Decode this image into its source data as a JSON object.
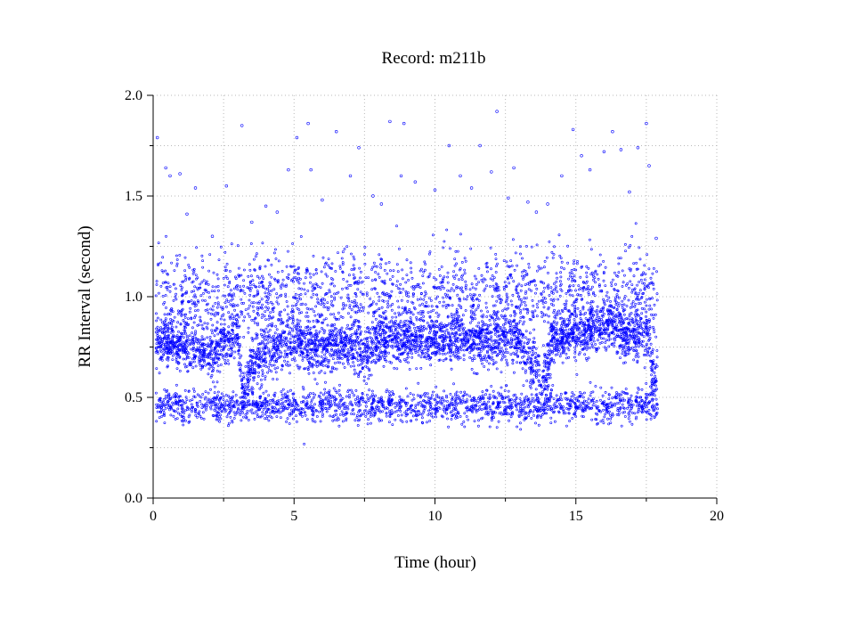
{
  "chart_data": {
    "type": "scatter",
    "title": "Record:  m211b",
    "xlabel": "Time (hour)",
    "ylabel": "RR Interval (second)",
    "xlim": [
      0,
      20
    ],
    "ylim": [
      0,
      2
    ],
    "x_ticks": [
      {
        "value": 0,
        "label": "0"
      },
      {
        "value": 5,
        "label": "5"
      },
      {
        "value": 10,
        "label": "10"
      },
      {
        "value": 15,
        "label": "15"
      },
      {
        "value": 20,
        "label": "20"
      }
    ],
    "y_ticks": [
      {
        "value": 0,
        "label": "0.0"
      },
      {
        "value": 0.5,
        "label": "0.5"
      },
      {
        "value": 1.0,
        "label": "1.0"
      },
      {
        "value": 1.5,
        "label": "1.5"
      },
      {
        "value": 2.0,
        "label": "2.0"
      }
    ],
    "x_minor_step": 2.5,
    "y_minor_step": 0.25,
    "grid": true,
    "marker_color": "#0000ff",
    "series": [
      {
        "bands": [
          {
            "x_start": 0.1,
            "x_end": 17.9,
            "center": "baseline",
            "spread": 0.06,
            "weight": 4
          },
          {
            "x_start": 0.1,
            "x_end": 17.9,
            "center": "low",
            "spread": 0.04,
            "weight": 2
          },
          {
            "x_start": 0.1,
            "x_end": 17.9,
            "center": "high",
            "spread": 0.11,
            "weight": 2
          }
        ],
        "baseline_trend": [
          [
            0.1,
            0.78
          ],
          [
            1.0,
            0.75
          ],
          [
            2.0,
            0.72
          ],
          [
            2.6,
            0.78
          ],
          [
            3.0,
            0.8
          ],
          [
            3.2,
            0.5
          ],
          [
            3.5,
            0.68
          ],
          [
            4.0,
            0.74
          ],
          [
            5.0,
            0.76
          ],
          [
            6.0,
            0.74
          ],
          [
            7.0,
            0.76
          ],
          [
            7.5,
            0.7
          ],
          [
            8.0,
            0.78
          ],
          [
            9.0,
            0.79
          ],
          [
            10.0,
            0.78
          ],
          [
            11.0,
            0.79
          ],
          [
            12.0,
            0.78
          ],
          [
            12.9,
            0.8
          ],
          [
            13.2,
            0.72
          ],
          [
            13.6,
            0.66
          ],
          [
            13.9,
            0.6
          ],
          [
            14.2,
            0.78
          ],
          [
            15.0,
            0.82
          ],
          [
            15.8,
            0.84
          ],
          [
            16.2,
            0.88
          ],
          [
            16.6,
            0.8
          ],
          [
            17.0,
            0.8
          ],
          [
            17.6,
            0.82
          ],
          [
            17.7,
            0.6
          ],
          [
            17.9,
            0.62
          ]
        ],
        "low_level": 0.46,
        "high_level": 1.0,
        "outliers": [
          [
            0.15,
            1.79
          ],
          [
            0.45,
            1.64
          ],
          [
            0.6,
            1.6
          ],
          [
            0.95,
            1.61
          ],
          [
            1.2,
            1.41
          ],
          [
            1.5,
            1.54
          ],
          [
            2.1,
            1.3
          ],
          [
            2.6,
            1.55
          ],
          [
            3.15,
            1.85
          ],
          [
            3.5,
            1.37
          ],
          [
            4.0,
            1.45
          ],
          [
            4.4,
            1.42
          ],
          [
            4.8,
            1.63
          ],
          [
            5.1,
            1.79
          ],
          [
            5.5,
            1.86
          ],
          [
            5.6,
            1.63
          ],
          [
            6.0,
            1.48
          ],
          [
            6.5,
            1.82
          ],
          [
            7.0,
            1.6
          ],
          [
            7.3,
            1.74
          ],
          [
            7.8,
            1.5
          ],
          [
            8.1,
            1.46
          ],
          [
            8.4,
            1.87
          ],
          [
            8.8,
            1.6
          ],
          [
            8.9,
            1.86
          ],
          [
            9.3,
            1.57
          ],
          [
            10.0,
            1.53
          ],
          [
            10.5,
            1.75
          ],
          [
            10.9,
            1.6
          ],
          [
            11.3,
            1.54
          ],
          [
            11.6,
            1.75
          ],
          [
            12.0,
            1.62
          ],
          [
            12.2,
            1.92
          ],
          [
            12.6,
            1.49
          ],
          [
            12.8,
            1.64
          ],
          [
            13.3,
            1.47
          ],
          [
            13.6,
            1.42
          ],
          [
            14.0,
            1.46
          ],
          [
            14.5,
            1.6
          ],
          [
            14.9,
            1.83
          ],
          [
            15.2,
            1.7
          ],
          [
            15.5,
            1.63
          ],
          [
            16.0,
            1.72
          ],
          [
            16.3,
            1.82
          ],
          [
            16.6,
            1.73
          ],
          [
            16.9,
            1.52
          ],
          [
            17.2,
            1.74
          ],
          [
            17.5,
            1.86
          ],
          [
            17.6,
            1.65
          ],
          [
            17.85,
            1.29
          ]
        ]
      }
    ]
  }
}
